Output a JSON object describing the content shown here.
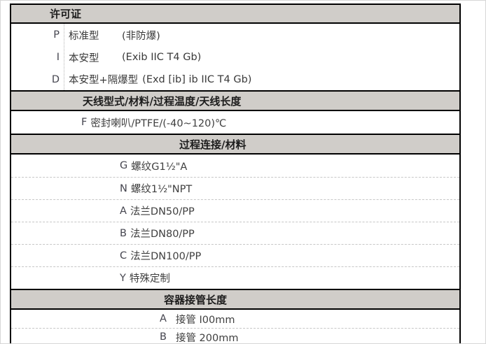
{
  "colors": {
    "section_header_bg": "#d0cdc9",
    "table_border": "#000000",
    "dashed_divider": "#c6c6c6",
    "text": "#3a3a3a"
  },
  "license": {
    "header": "许可证",
    "items": [
      {
        "code": "P",
        "name": "标准型",
        "detail": "(非防爆)"
      },
      {
        "code": "I",
        "name": "本安型",
        "detail": "(Exib IIC T4 Gb)"
      },
      {
        "code": "D",
        "name": "本安型+隔爆型",
        "detail": "(Exd [ib] ib IIC T4 Gb)"
      }
    ]
  },
  "antenna": {
    "header": "天线型式/材料/过程温度/天线长度",
    "items": [
      {
        "code": "F",
        "label": "密封喇叭/PTFE/(-40~120)℃"
      }
    ]
  },
  "process_connection": {
    "header": "过程连接/材料",
    "items": [
      {
        "code": "G",
        "label": "螺纹G1½\"A"
      },
      {
        "code": "N",
        "label": "螺纹1½\"NPT"
      },
      {
        "code": "A",
        "label": "法兰DN50/PP"
      },
      {
        "code": "B",
        "label": "法兰DN80/PP"
      },
      {
        "code": "C",
        "label": "法兰DN100/PP"
      },
      {
        "code": "Y",
        "label": "特殊定制"
      }
    ]
  },
  "nozzle_length": {
    "header": "容器接管长度",
    "items": [
      {
        "code": "A",
        "label": "接管 I00mm"
      },
      {
        "code": "B",
        "label": "接管 200mm"
      }
    ]
  }
}
